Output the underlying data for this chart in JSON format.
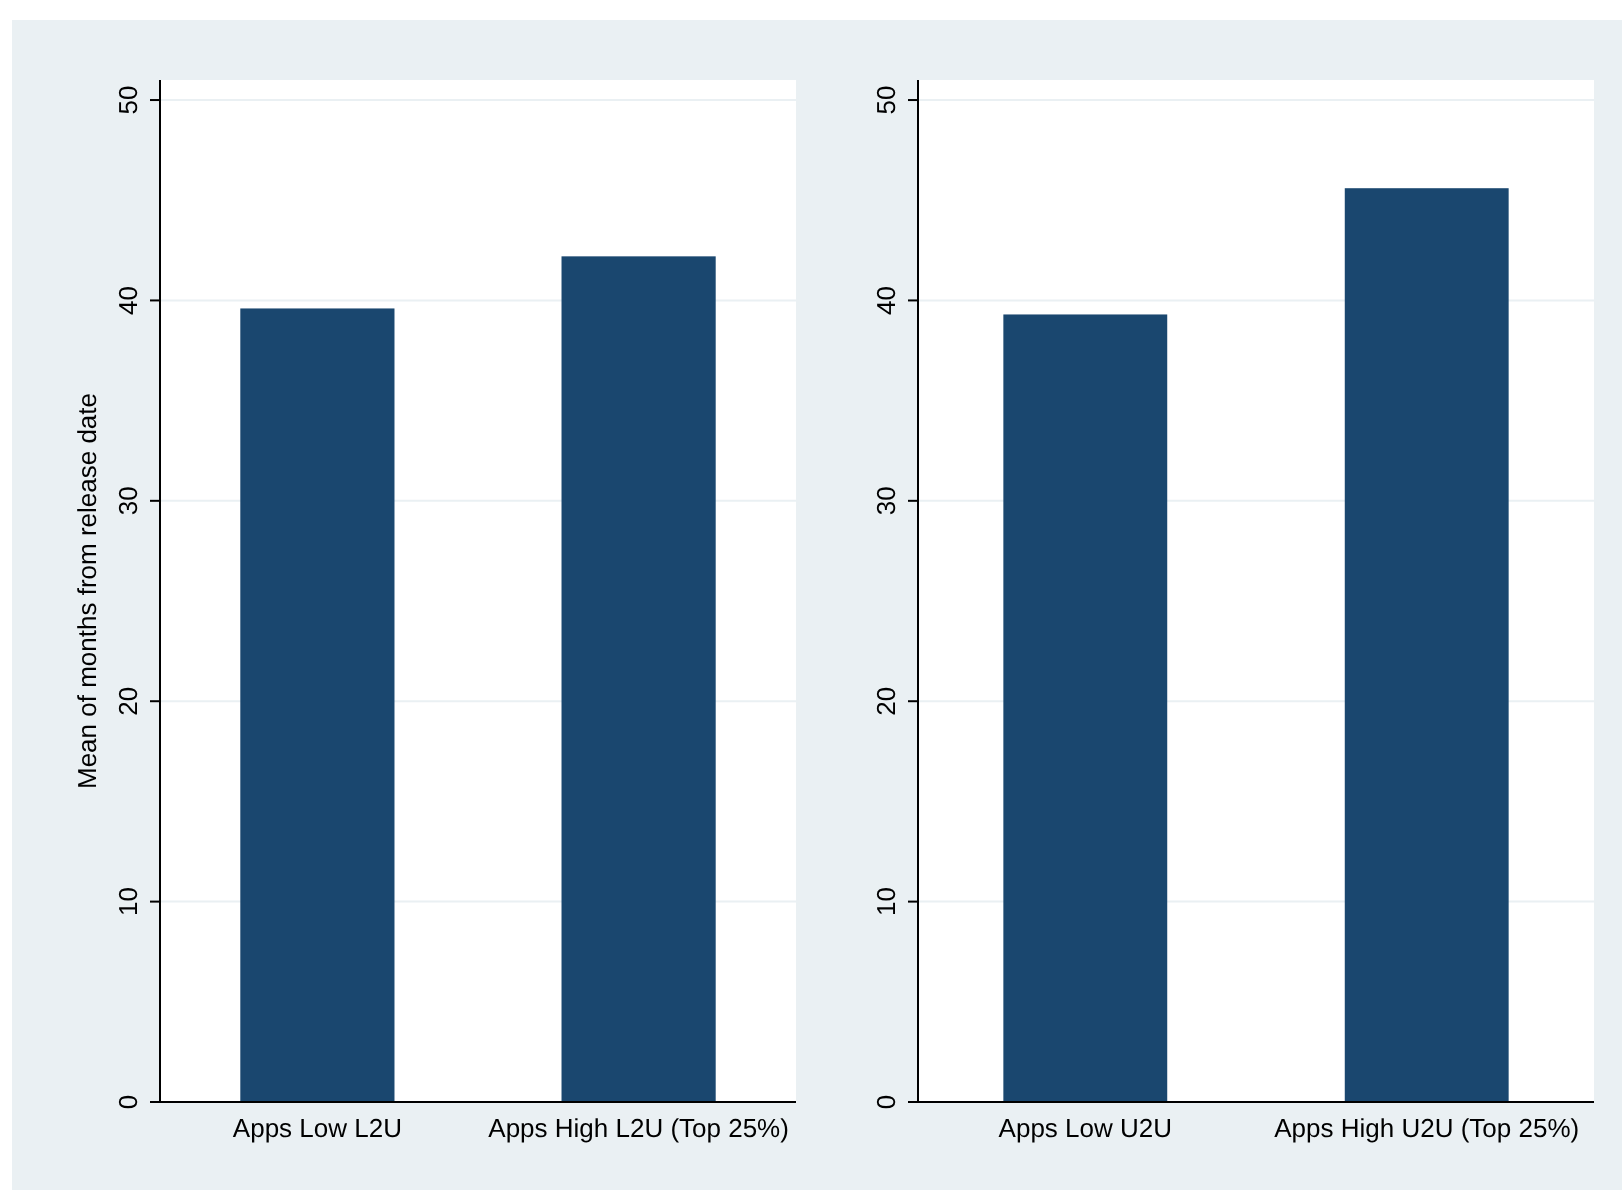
{
  "chart_data": [
    {
      "type": "bar",
      "ylabel": "Mean of months from release date",
      "categories": [
        "Apps Low L2U",
        "Apps High L2U (Top 25%)"
      ],
      "values": [
        39.6,
        42.2
      ],
      "color": "#1a476f",
      "ylim": [
        0,
        51
      ],
      "yticks": [
        0,
        10,
        20,
        30,
        40,
        50
      ],
      "grid": "y"
    },
    {
      "type": "bar",
      "categories": [
        "Apps Low U2U",
        "Apps High U2U (Top 25%)"
      ],
      "values": [
        39.3,
        45.6
      ],
      "color": "#1a476f",
      "ylim": [
        0,
        51
      ],
      "yticks": [
        0,
        10,
        20,
        30,
        40,
        50
      ],
      "grid": "y"
    }
  ]
}
